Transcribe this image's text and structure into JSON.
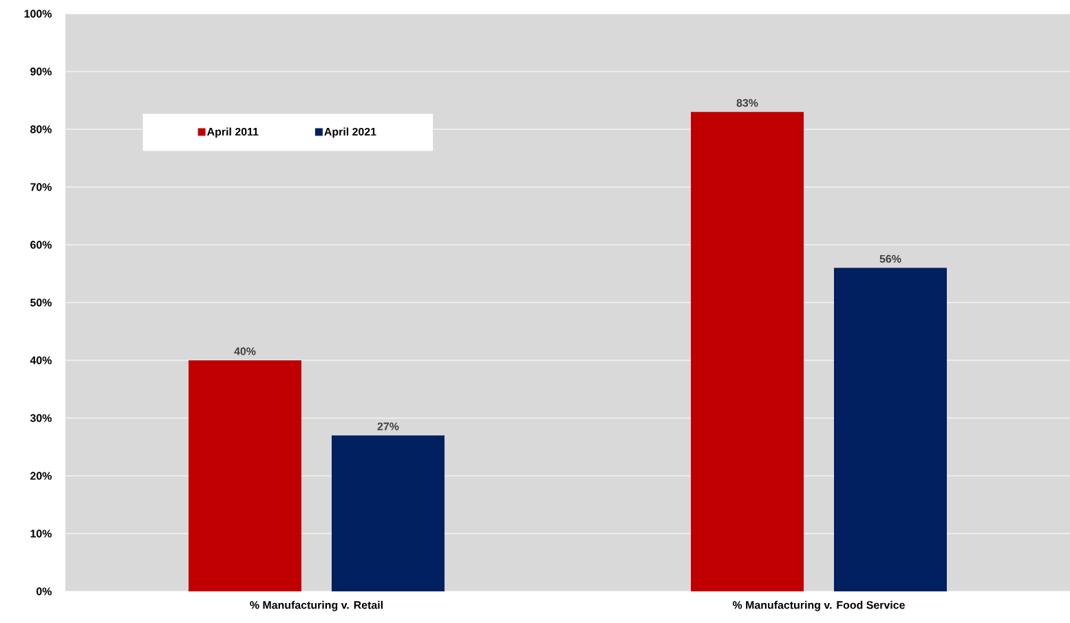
{
  "chart_data": {
    "type": "bar",
    "categories": [
      "% Manufacturing v. Retail",
      "% Manufacturing v. Food Service"
    ],
    "series": [
      {
        "name": "April 2011",
        "color": "#c00000",
        "values": [
          40,
          83
        ],
        "value_labels": [
          "40%",
          "83%"
        ]
      },
      {
        "name": "April 2021",
        "color": "#002060",
        "values": [
          27,
          56
        ],
        "value_labels": [
          "27%",
          "56%"
        ]
      }
    ],
    "ylim": [
      0,
      100
    ],
    "yticks": [
      {
        "value": 0,
        "label": "0%"
      },
      {
        "value": 10,
        "label": "10%"
      },
      {
        "value": 20,
        "label": "20%"
      },
      {
        "value": 30,
        "label": "30%"
      },
      {
        "value": 40,
        "label": "40%"
      },
      {
        "value": 50,
        "label": "50%"
      },
      {
        "value": 60,
        "label": "60%"
      },
      {
        "value": 70,
        "label": "70%"
      },
      {
        "value": 80,
        "label": "80%"
      },
      {
        "value": 90,
        "label": "90%"
      },
      {
        "value": 100,
        "label": "100%"
      }
    ],
    "grid": "y",
    "legend": "top left"
  }
}
